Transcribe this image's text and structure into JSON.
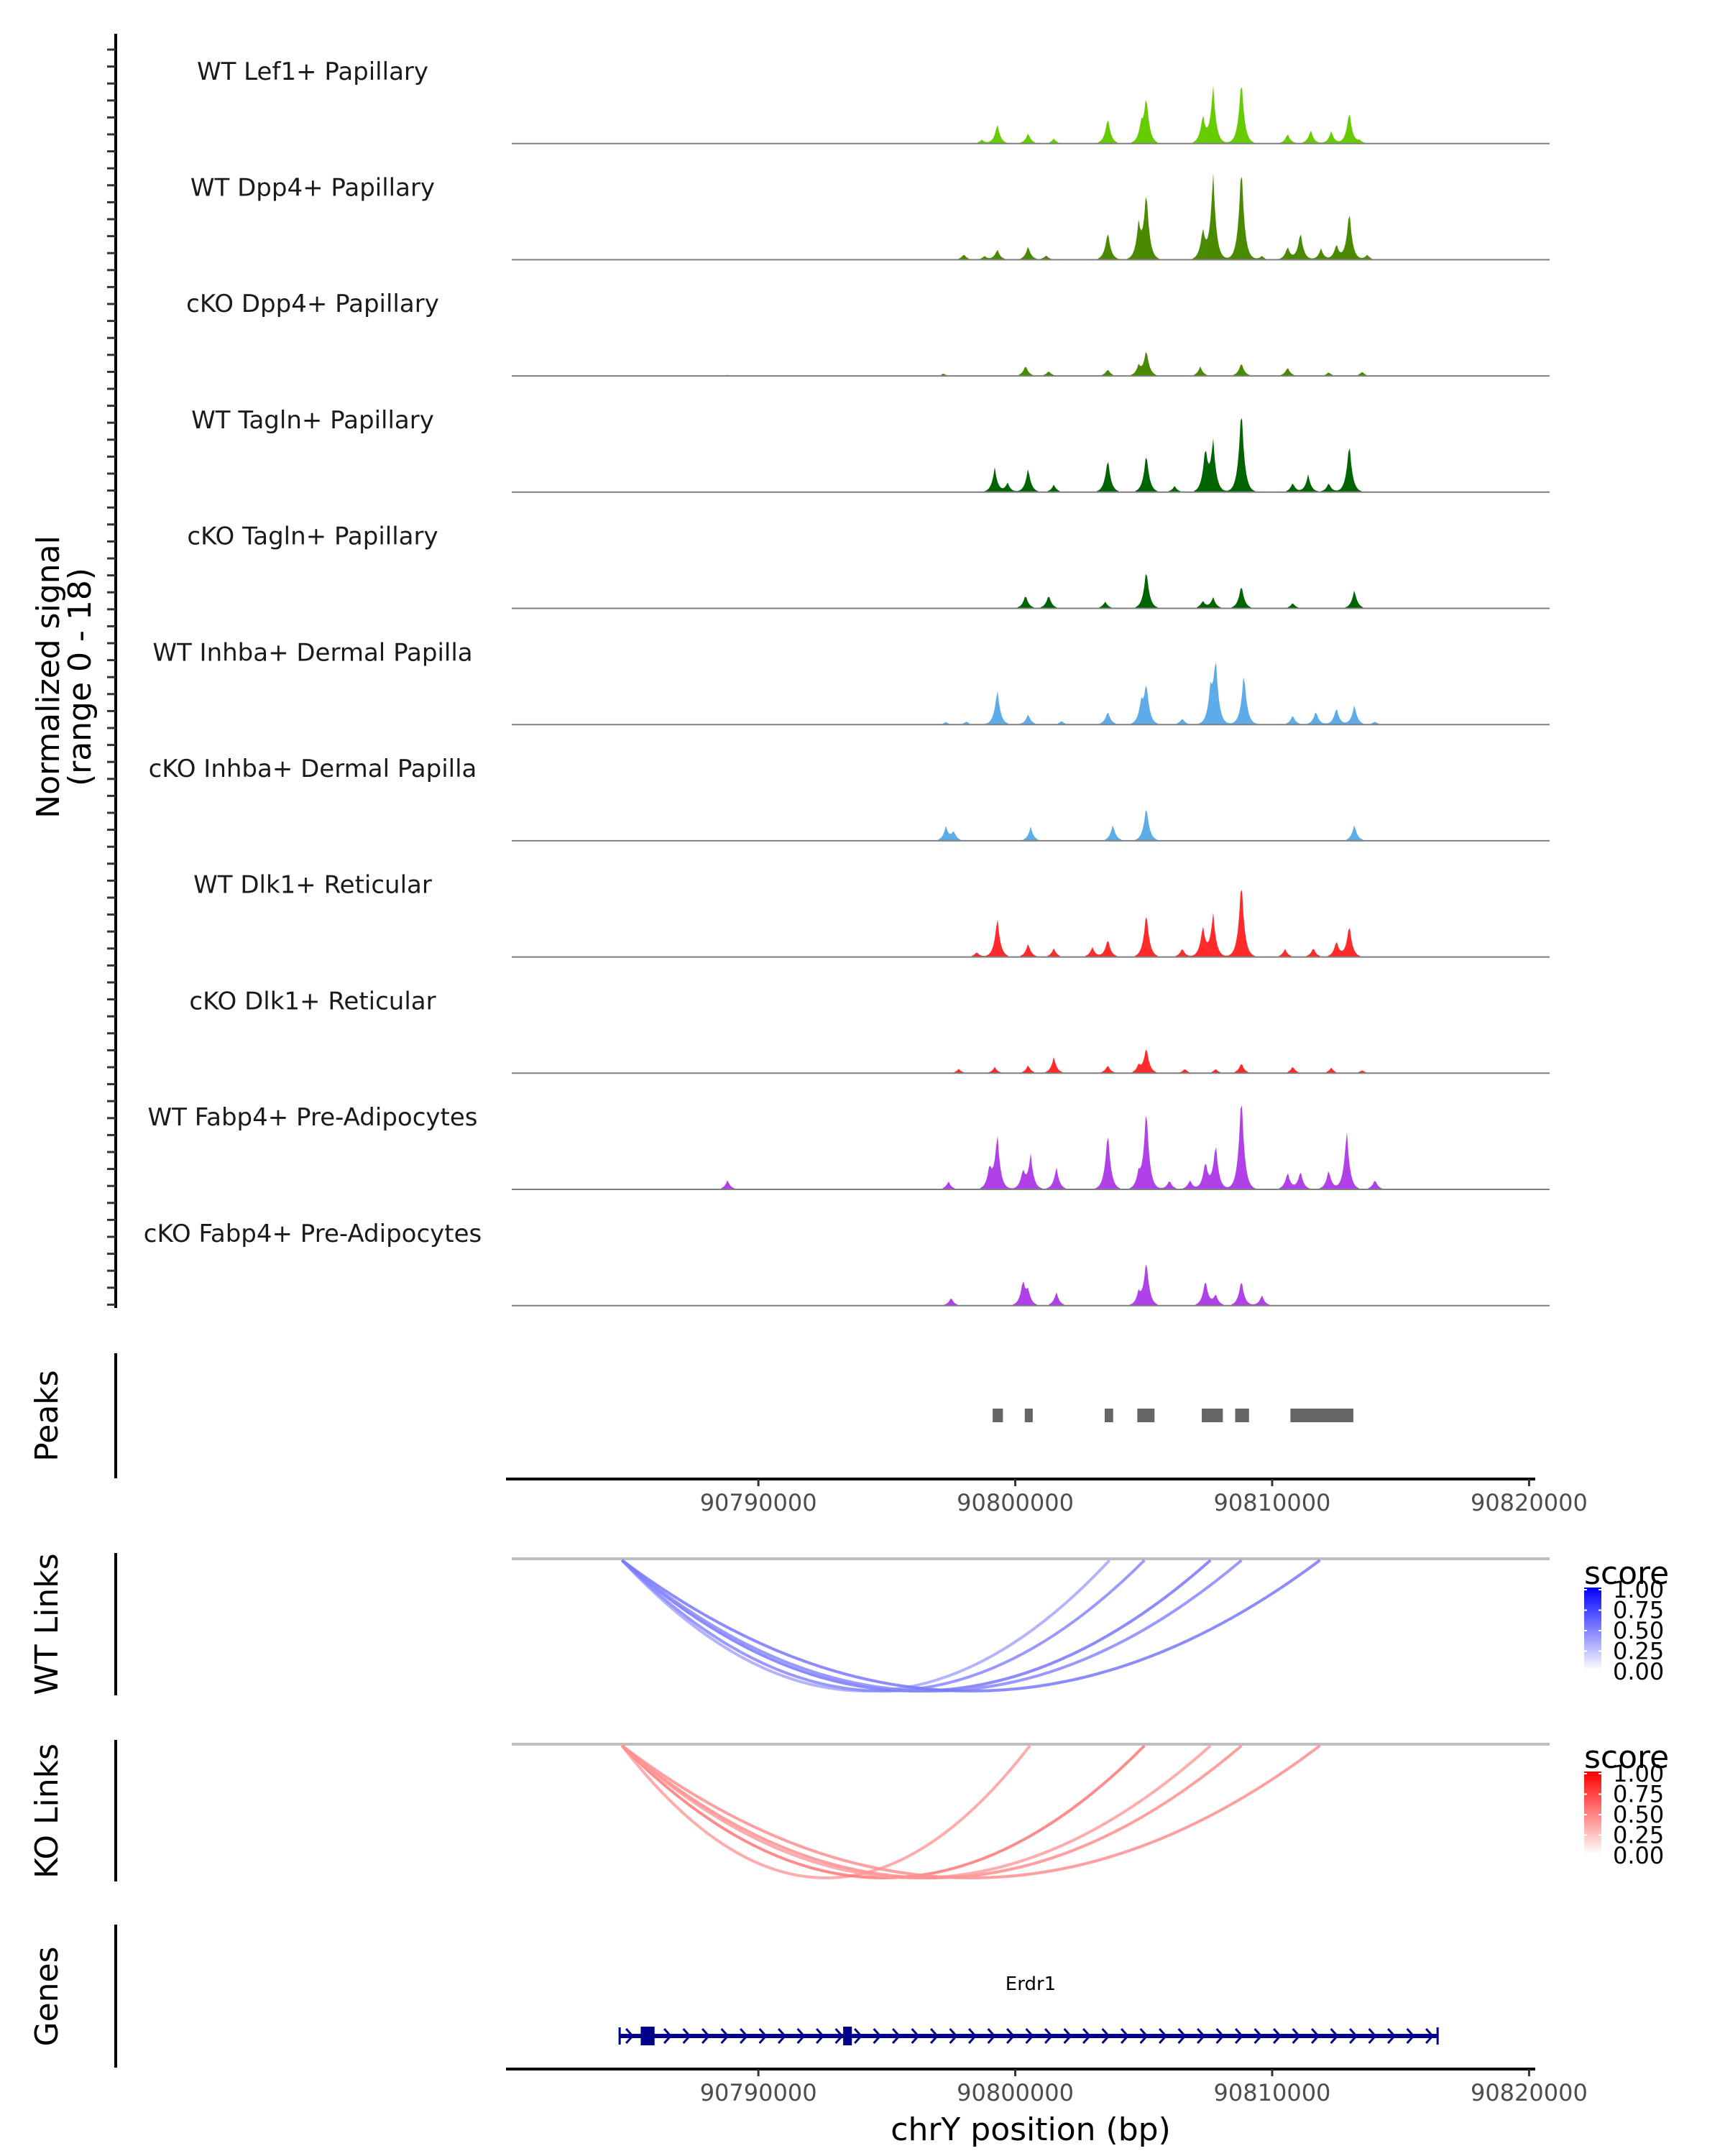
{
  "chart_data": {
    "type": "area",
    "title": "",
    "ylabel": "Normalized signal\n(range 0 - 18)",
    "ylabel_lines": [
      "Normalized signal",
      "(range 0 - 18)"
    ],
    "ylim": [
      0,
      18
    ],
    "xlabel": "chrY position (bp)",
    "xlim": [
      90780400,
      90820800
    ],
    "xticks": [
      90790000,
      90800000,
      90810000,
      90820000
    ],
    "xtick_labels": [
      "90790000",
      "90800000",
      "90810000",
      "90820000"
    ],
    "coverage_tracks": [
      {
        "name": "WT Lef1+ Papillary",
        "color": "#66cc00",
        "peaks": [
          [
            90798700,
            0.6
          ],
          [
            90799300,
            3.2
          ],
          [
            90800500,
            1.7
          ],
          [
            90801500,
            0.8
          ],
          [
            90803600,
            4.3
          ],
          [
            90804900,
            2.6
          ],
          [
            90805100,
            7.5
          ],
          [
            90807300,
            4.5
          ],
          [
            90807700,
            9.3
          ],
          [
            90808800,
            10.8
          ],
          [
            90810600,
            1.6
          ],
          [
            90811500,
            2.2
          ],
          [
            90812300,
            2.0
          ],
          [
            90813000,
            5.4
          ],
          [
            90813400,
            0.5
          ]
        ]
      },
      {
        "name": "WT Dpp4+ Papillary",
        "color": "#4a8a00",
        "peaks": [
          [
            90798000,
            0.9
          ],
          [
            90798800,
            0.6
          ],
          [
            90799300,
            1.7
          ],
          [
            90800500,
            2.2
          ],
          [
            90801200,
            0.7
          ],
          [
            90803600,
            4.7
          ],
          [
            90804800,
            5.5
          ],
          [
            90805100,
            11.2
          ],
          [
            90807300,
            4.8
          ],
          [
            90807700,
            14.0
          ],
          [
            90808800,
            15.9
          ],
          [
            90809600,
            0.6
          ],
          [
            90810600,
            2.1
          ],
          [
            90811100,
            4.6
          ],
          [
            90811900,
            1.8
          ],
          [
            90812500,
            2.5
          ],
          [
            90813000,
            8.2
          ],
          [
            90813700,
            0.8
          ]
        ]
      },
      {
        "name": "cKO Dpp4+ Papillary",
        "color": "#4a8a00",
        "peaks": [
          [
            90788800,
            0.2
          ],
          [
            90797200,
            0.4
          ],
          [
            90800400,
            1.7
          ],
          [
            90801300,
            0.8
          ],
          [
            90803600,
            1.1
          ],
          [
            90804800,
            1.6
          ],
          [
            90805100,
            4.3
          ],
          [
            90807200,
            1.5
          ],
          [
            90808800,
            2.2
          ],
          [
            90810600,
            1.4
          ],
          [
            90812200,
            0.6
          ],
          [
            90813500,
            0.7
          ]
        ]
      },
      {
        "name": "WT Tagln+ Papillary",
        "color": "#006400",
        "peaks": [
          [
            90799200,
            3.9
          ],
          [
            90799700,
            1.5
          ],
          [
            90800500,
            3.9
          ],
          [
            90801500,
            1.2
          ],
          [
            90803600,
            5.6
          ],
          [
            90805100,
            6.5
          ],
          [
            90806200,
            1.0
          ],
          [
            90807400,
            7.0
          ],
          [
            90807700,
            8.2
          ],
          [
            90808800,
            14.2
          ],
          [
            90810800,
            1.5
          ],
          [
            90811400,
            2.8
          ],
          [
            90812200,
            1.5
          ],
          [
            90813000,
            8.2
          ]
        ]
      },
      {
        "name": "cKO Tagln+ Papillary",
        "color": "#006400",
        "peaks": [
          [
            90800400,
            2.2
          ],
          [
            90801300,
            2.2
          ],
          [
            90803500,
            1.1
          ],
          [
            90805100,
            6.5
          ],
          [
            90807300,
            1.2
          ],
          [
            90807700,
            1.8
          ],
          [
            90808800,
            3.9
          ],
          [
            90810800,
            0.9
          ],
          [
            90813200,
            3.0
          ]
        ]
      },
      {
        "name": "WT Inhba+ Dermal Papilla",
        "color": "#5dabe8",
        "peaks": [
          [
            90797300,
            0.4
          ],
          [
            90798100,
            0.5
          ],
          [
            90799300,
            5.8
          ],
          [
            90800500,
            1.7
          ],
          [
            90801800,
            0.6
          ],
          [
            90803600,
            2.2
          ],
          [
            90804900,
            3.2
          ],
          [
            90805100,
            6.5
          ],
          [
            90806500,
            1.0
          ],
          [
            90807600,
            5.0
          ],
          [
            90807800,
            10.3
          ],
          [
            90808900,
            8.6
          ],
          [
            90810800,
            1.5
          ],
          [
            90811700,
            2.2
          ],
          [
            90812500,
            2.8
          ],
          [
            90813200,
            3.2
          ],
          [
            90814000,
            0.5
          ]
        ]
      },
      {
        "name": "cKO Inhba+ Dermal Papilla",
        "color": "#5dabe8",
        "peaks": [
          [
            90797300,
            2.2
          ],
          [
            90797600,
            1.5
          ],
          [
            90800600,
            2.2
          ],
          [
            90803800,
            2.6
          ],
          [
            90805100,
            5.8
          ],
          [
            90813200,
            2.6
          ]
        ]
      },
      {
        "name": "WT Dlk1+ Reticular",
        "color": "#ff2a2a",
        "peaks": [
          [
            90798500,
            0.8
          ],
          [
            90799300,
            6.5
          ],
          [
            90800500,
            2.2
          ],
          [
            90801500,
            1.4
          ],
          [
            90803000,
            1.6
          ],
          [
            90803600,
            3.0
          ],
          [
            90805100,
            7.5
          ],
          [
            90806500,
            1.4
          ],
          [
            90807300,
            5.0
          ],
          [
            90807700,
            7.1
          ],
          [
            90808800,
            12.9
          ],
          [
            90810500,
            1.3
          ],
          [
            90811600,
            1.5
          ],
          [
            90812500,
            2.6
          ],
          [
            90813000,
            5.4
          ]
        ]
      },
      {
        "name": "cKO Dlk1+ Reticular",
        "color": "#ff2a2a",
        "peaks": [
          [
            90797800,
            0.7
          ],
          [
            90799200,
            1.0
          ],
          [
            90800500,
            1.3
          ],
          [
            90801500,
            2.6
          ],
          [
            90803600,
            1.3
          ],
          [
            90804800,
            1.2
          ],
          [
            90805100,
            4.3
          ],
          [
            90806600,
            0.7
          ],
          [
            90807800,
            0.7
          ],
          [
            90808800,
            1.7
          ],
          [
            90810800,
            1.1
          ],
          [
            90812300,
            0.9
          ],
          [
            90813500,
            0.5
          ]
        ]
      },
      {
        "name": "WT Fabp4+ Pre-Adipocytes",
        "color": "#b041e8",
        "peaks": [
          [
            90788800,
            1.5
          ],
          [
            90797400,
            1.3
          ],
          [
            90799000,
            3.5
          ],
          [
            90799300,
            9.0
          ],
          [
            90800300,
            3.0
          ],
          [
            90800600,
            5.4
          ],
          [
            90801600,
            3.6
          ],
          [
            90803600,
            9.7
          ],
          [
            90804800,
            2.3
          ],
          [
            90805100,
            13.6
          ],
          [
            90806000,
            1.5
          ],
          [
            90806800,
            1.5
          ],
          [
            90807400,
            4.5
          ],
          [
            90807800,
            7.5
          ],
          [
            90808800,
            16.1
          ],
          [
            90810600,
            2.8
          ],
          [
            90811100,
            3.0
          ],
          [
            90812200,
            3.2
          ],
          [
            90812900,
            9.7
          ],
          [
            90814000,
            1.6
          ]
        ]
      },
      {
        "name": "cKO Fabp4+ Pre-Adipocytes",
        "color": "#b041e8",
        "peaks": [
          [
            90797500,
            1.3
          ],
          [
            90800300,
            3.9
          ],
          [
            90800500,
            2.2
          ],
          [
            90801600,
            2.2
          ],
          [
            90804800,
            2.0
          ],
          [
            90805100,
            7.5
          ],
          [
            90807400,
            4.3
          ],
          [
            90807800,
            1.8
          ],
          [
            90808800,
            4.3
          ],
          [
            90809600,
            1.7
          ]
        ]
      }
    ],
    "peaks_track": {
      "label": "Peaks",
      "color": "#666666",
      "regions": [
        [
          90799120,
          90799520
        ],
        [
          90800370,
          90800680
        ],
        [
          90803480,
          90803810
        ],
        [
          90804750,
          90805420
        ],
        [
          90807260,
          90808080
        ],
        [
          90808560,
          90809100
        ],
        [
          90810710,
          90813160
        ]
      ]
    },
    "links_tracks": [
      {
        "label": "WT Links",
        "legend_title": "score",
        "low_color": "#ffffff",
        "high_color": "#0000ff",
        "links": [
          {
            "start": 90784690,
            "end": 90803670,
            "score": 0.25
          },
          {
            "start": 90784690,
            "end": 90805030,
            "score": 0.45
          },
          {
            "start": 90784690,
            "end": 90807600,
            "score": 0.55
          },
          {
            "start": 90784690,
            "end": 90808810,
            "score": 0.45
          },
          {
            "start": 90784690,
            "end": 90811860,
            "score": 0.55
          }
        ]
      },
      {
        "label": "KO Links",
        "legend_title": "score",
        "low_color": "#ffffff",
        "high_color": "#ff0000",
        "links": [
          {
            "start": 90784690,
            "end": 90800570,
            "score": 0.3
          },
          {
            "start": 90784690,
            "end": 90805030,
            "score": 0.55
          },
          {
            "start": 90784690,
            "end": 90807600,
            "score": 0.3
          },
          {
            "start": 90784690,
            "end": 90808810,
            "score": 0.4
          },
          {
            "start": 90784690,
            "end": 90811860,
            "score": 0.4
          }
        ]
      }
    ],
    "legend_ticks": [
      "1.00",
      "0.75",
      "0.50",
      "0.25",
      "0.00"
    ],
    "genes_track": {
      "label": "Genes",
      "color": "#00008b",
      "genes": [
        {
          "name": "Erdr1",
          "start": 90784600,
          "end": 90816440,
          "strand": "+",
          "exons": [
            [
              90785420,
              90785960
            ],
            [
              90793300,
              90793640
            ]
          ]
        }
      ]
    }
  }
}
